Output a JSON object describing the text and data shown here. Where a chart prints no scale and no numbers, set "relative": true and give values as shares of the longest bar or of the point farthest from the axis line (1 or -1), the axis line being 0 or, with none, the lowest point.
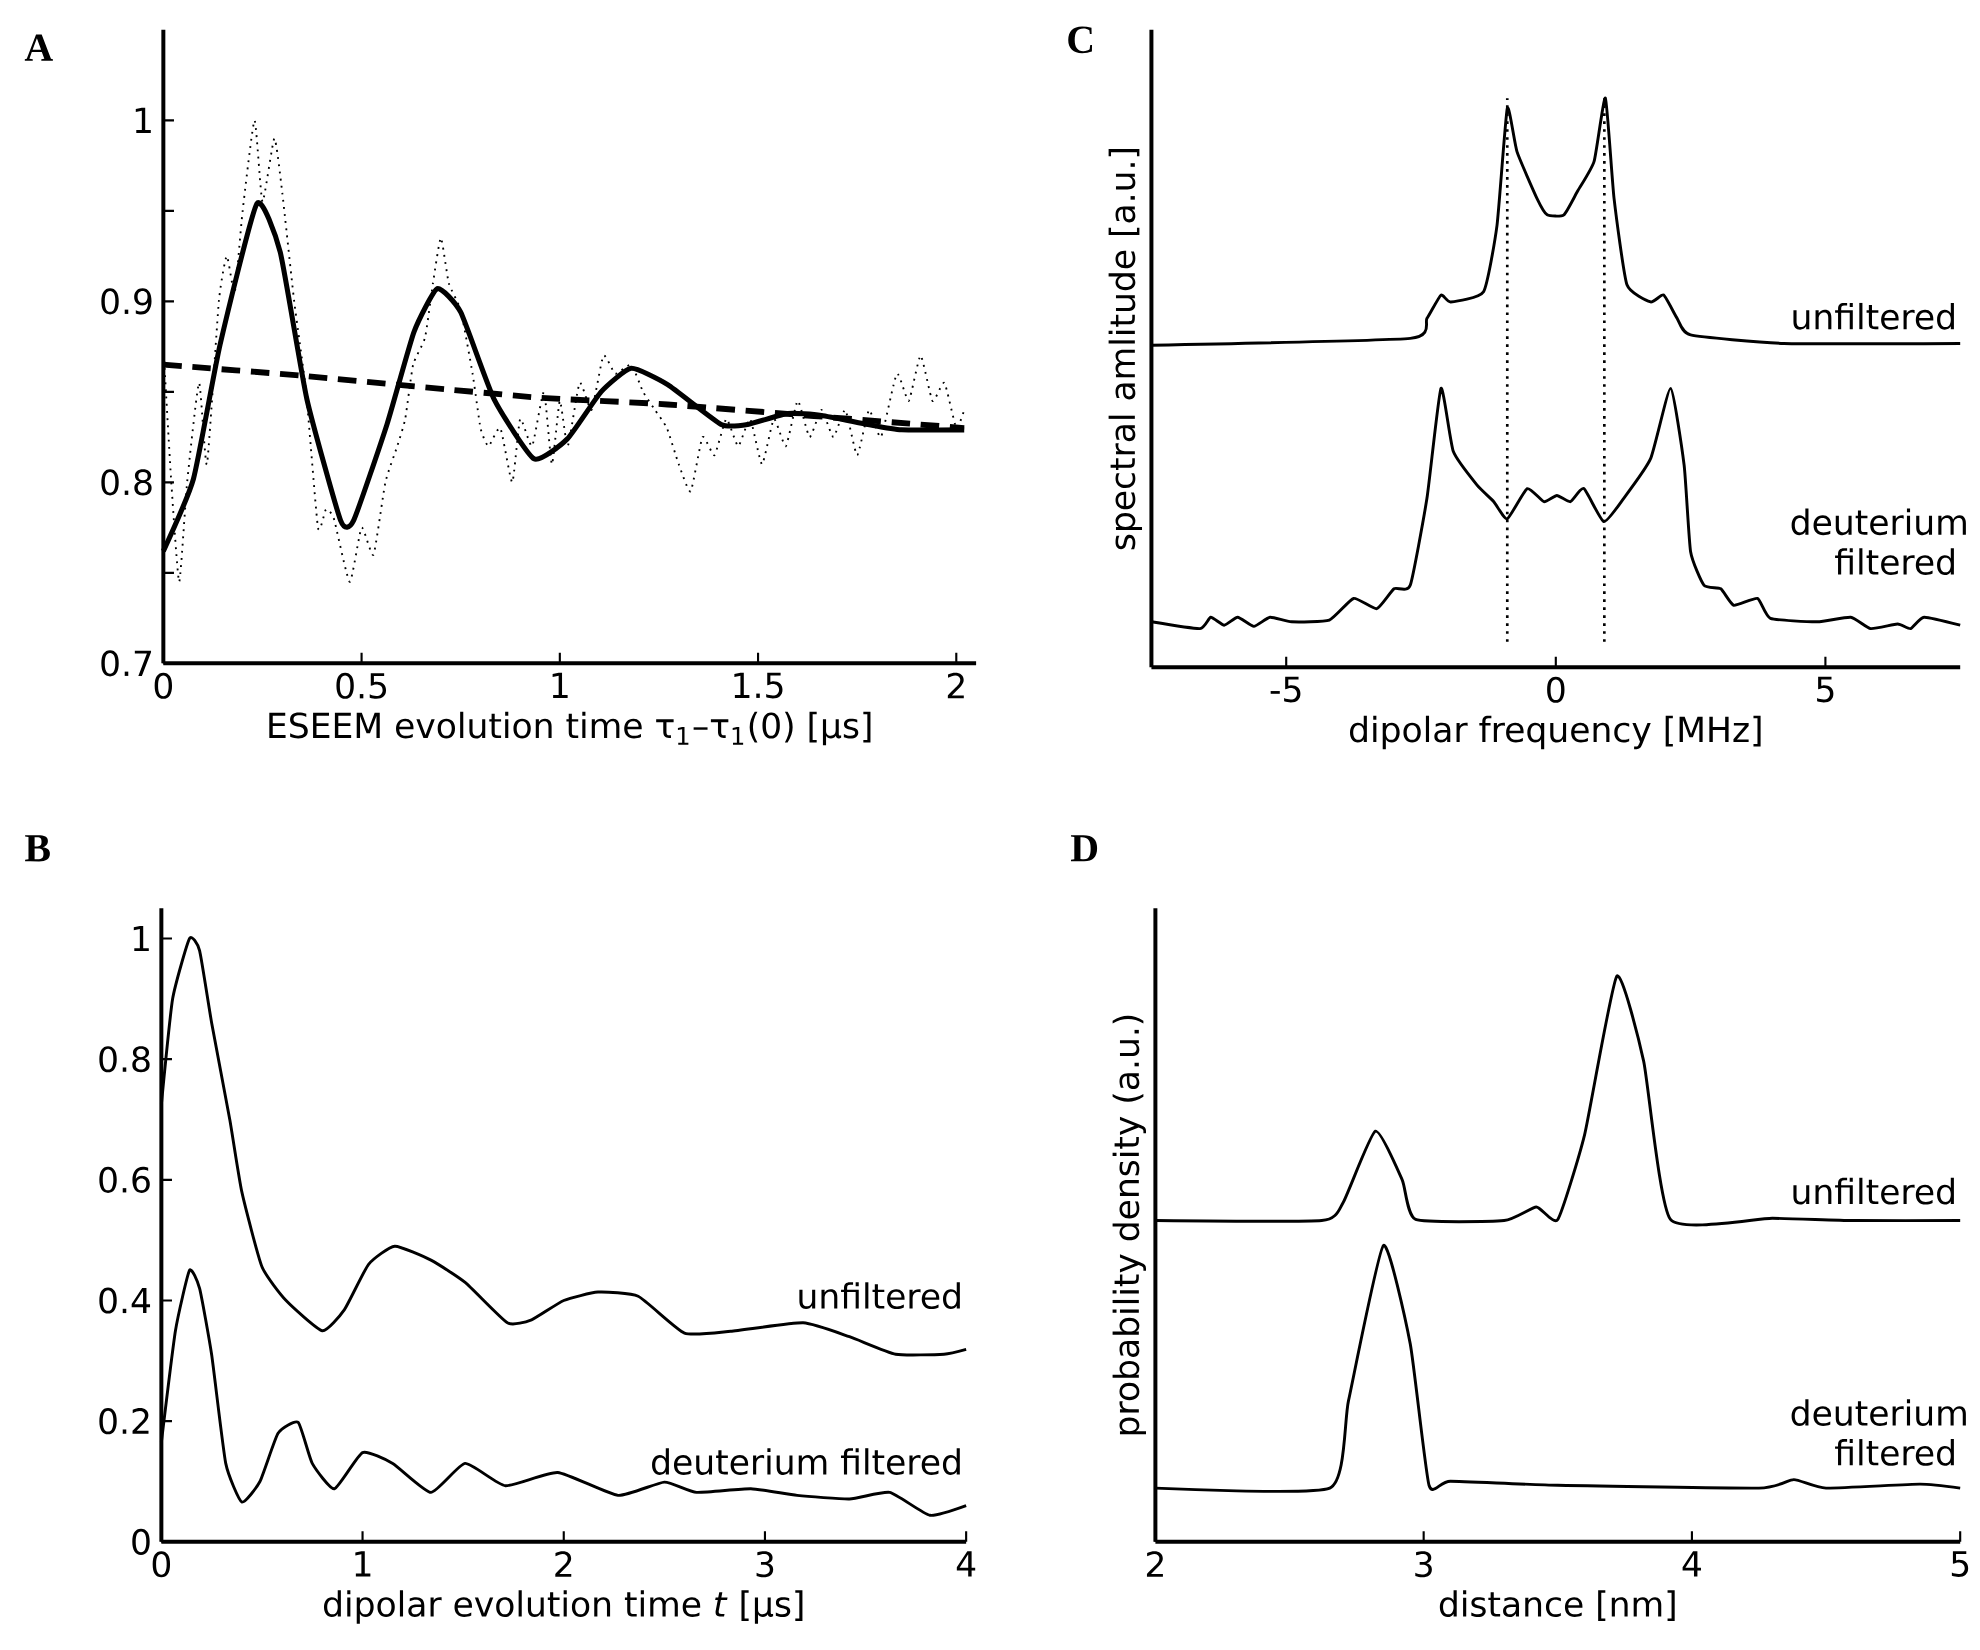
{
  "chart_data": [
    {
      "type": "line",
      "title": "A",
      "xlabel": "ESEEM evolution time τ$_{1}$–τ$_{1}$(0) [μs]",
      "xlim": [
        0,
        2.05
      ],
      "ylim": [
        0.7,
        1.05
      ],
      "xticks": [
        0,
        0.5,
        1,
        1.5,
        2
      ],
      "yticks": [
        0.7,
        {
          "value": 0.75,
          "label": null
        },
        0.8,
        {
          "value": 0.85,
          "label": null
        },
        0.9,
        {
          "value": 0.95,
          "label": null
        },
        1
      ],
      "series": [
        {
          "color": "#000000",
          "line_style": "dotted",
          "x": [
            0,
            0.02,
            0.04,
            0.06,
            0.09,
            0.11,
            0.14,
            0.16,
            0.18,
            0.2,
            0.23,
            0.25,
            0.28,
            0.3,
            0.33,
            0.36,
            0.39,
            0.41,
            0.43,
            0.47,
            0.5,
            0.53,
            0.56,
            0.59,
            0.61,
            0.63,
            0.66,
            0.68,
            0.7,
            0.72,
            0.75,
            0.78,
            0.8,
            0.82,
            0.85,
            0.88,
            0.9,
            0.93,
            0.96,
            0.98,
            1.0,
            1.02,
            1.05,
            1.08,
            1.11,
            1.14,
            1.18,
            1.21,
            1.24,
            1.27,
            1.3,
            1.33,
            1.36,
            1.39,
            1.42,
            1.45,
            1.48,
            1.51,
            1.54,
            1.57,
            1.6,
            1.63,
            1.66,
            1.69,
            1.72,
            1.75,
            1.78,
            1.81,
            1.85,
            1.88,
            1.91,
            1.94,
            1.97,
            2.0,
            2.02
          ],
          "values": [
            0.875,
            0.8,
            0.745,
            0.8,
            0.855,
            0.81,
            0.9,
            0.925,
            0.905,
            0.95,
            1.0,
            0.955,
            0.99,
            0.96,
            0.9,
            0.85,
            0.775,
            0.785,
            0.78,
            0.745,
            0.775,
            0.76,
            0.8,
            0.82,
            0.835,
            0.865,
            0.88,
            0.91,
            0.935,
            0.91,
            0.895,
            0.86,
            0.83,
            0.82,
            0.83,
            0.8,
            0.835,
            0.82,
            0.85,
            0.81,
            0.845,
            0.82,
            0.855,
            0.84,
            0.87,
            0.86,
            0.865,
            0.85,
            0.84,
            0.83,
            0.81,
            0.795,
            0.825,
            0.815,
            0.835,
            0.82,
            0.835,
            0.81,
            0.835,
            0.82,
            0.845,
            0.825,
            0.84,
            0.825,
            0.84,
            0.815,
            0.84,
            0.825,
            0.86,
            0.845,
            0.87,
            0.845,
            0.855,
            0.83,
            0.84
          ]
        },
        {
          "color": "#000000",
          "line_style": "dashed",
          "x": [
            0,
            0.345,
            0.935,
            1.272,
            2.02
          ],
          "values": [
            0.865,
            0.859,
            0.847,
            0.843,
            0.83
          ]
        },
        {
          "color": "#000000",
          "line_style": "solid",
          "x": [
            0,
            0.076,
            0.143,
            0.236,
            0.295,
            0.362,
            0.447,
            0.48,
            0.564,
            0.632,
            0.691,
            0.75,
            0.834,
            0.935,
            1.019,
            1.104,
            1.18,
            1.272,
            1.407,
            1.474,
            1.575,
            1.66,
            1.777,
            1.862,
            2.02
          ],
          "values": [
            0.762,
            0.802,
            0.876,
            0.954,
            0.927,
            0.846,
            0.779,
            0.779,
            0.832,
            0.883,
            0.907,
            0.894,
            0.846,
            0.813,
            0.824,
            0.85,
            0.863,
            0.854,
            0.832,
            0.832,
            0.838,
            0.837,
            0.832,
            0.829,
            0.829
          ]
        }
      ]
    },
    {
      "type": "line",
      "title": "C",
      "xlabel": "dipolar frequency [MHz]",
      "ylabel": "spectral amlitude [a.u.]",
      "relative": true,
      "xlim": [
        -7.5,
        7.5
      ],
      "xticks": [
        -5,
        0,
        5
      ],
      "ref_lines": [
        {
          "axis": "x",
          "value": -0.9,
          "color": "#000000",
          "line_style": "dotted"
        },
        {
          "axis": "x",
          "value": 0.9,
          "color": "#000000",
          "line_style": "dotted"
        }
      ],
      "series": [
        {
          "name": "unfiltered",
          "color": "#000000",
          "line_style": "solid",
          "x": [
            -7.5,
            -2.7,
            -2.39,
            -2.13,
            -1.95,
            -1.34,
            -1.09,
            -0.9,
            -0.72,
            -0.35,
            -0.16,
            0.15,
            0.4,
            0.71,
            0.92,
            1.08,
            1.32,
            1.76,
            2.0,
            2.25,
            2.5,
            4.23,
            7.5
          ],
          "values": [
            0.566,
            0.578,
            0.613,
            0.654,
            0.642,
            0.66,
            0.777,
            0.982,
            0.906,
            0.824,
            0.795,
            0.795,
            0.836,
            0.889,
            1.0,
            0.824,
            0.672,
            0.642,
            0.654,
            0.613,
            0.584,
            0.569,
            0.569
          ]
        },
        {
          "name": "deuterium filtered",
          "color": "#000000",
          "line_style": "solid",
          "x": [
            -7.5,
            -6.6,
            -6.4,
            -6.15,
            -5.9,
            -5.6,
            -5.3,
            -4.9,
            -4.2,
            -3.75,
            -3.32,
            -3.0,
            -2.7,
            -2.39,
            -2.13,
            -1.9,
            -1.46,
            -1.15,
            -0.9,
            -0.53,
            -0.22,
            0.02,
            0.27,
            0.52,
            0.89,
            1.26,
            1.76,
            2.13,
            2.38,
            2.5,
            2.75,
            3.06,
            3.3,
            3.74,
            3.98,
            4.85,
            5.47,
            5.84,
            6.34,
            6.58,
            6.83,
            7.5
          ],
          "values": [
            0.08,
            0.068,
            0.088,
            0.074,
            0.088,
            0.072,
            0.088,
            0.08,
            0.083,
            0.121,
            0.103,
            0.138,
            0.144,
            0.297,
            0.49,
            0.379,
            0.32,
            0.291,
            0.261,
            0.314,
            0.291,
            0.302,
            0.291,
            0.314,
            0.256,
            0.297,
            0.367,
            0.49,
            0.355,
            0.203,
            0.144,
            0.138,
            0.109,
            0.121,
            0.086,
            0.08,
            0.088,
            0.068,
            0.076,
            0.068,
            0.088,
            0.074
          ]
        }
      ]
    },
    {
      "type": "line",
      "title": "B",
      "xlabel": "dipolar evolution time *t* [μs]",
      "xlim": [
        0,
        4
      ],
      "ylim": [
        0,
        1.05
      ],
      "xticks": [
        0,
        1,
        2,
        3,
        4
      ],
      "yticks": [
        0,
        0.2,
        0.4,
        0.6,
        0.8,
        1
      ],
      "series": [
        {
          "name": "unfiltered",
          "color": "#000000",
          "line_style": "solid",
          "x": [
            0,
            0.056,
            0.14,
            0.19,
            0.25,
            0.34,
            0.4,
            0.5,
            0.62,
            0.8,
            0.91,
            1.03,
            1.16,
            1.34,
            1.51,
            1.72,
            1.84,
            2.0,
            2.17,
            2.37,
            2.6,
            2.83,
            3.19,
            3.42,
            3.65,
            3.89,
            4.0
          ],
          "values": [
            0.725,
            0.9,
            1.0,
            0.98,
            0.86,
            0.7,
            0.58,
            0.456,
            0.4,
            0.35,
            0.385,
            0.46,
            0.49,
            0.467,
            0.43,
            0.363,
            0.368,
            0.4,
            0.414,
            0.407,
            0.346,
            0.349,
            0.363,
            0.34,
            0.311,
            0.311,
            0.319
          ]
        },
        {
          "name": "deuterium filtered",
          "color": "#000000",
          "line_style": "solid",
          "x": [
            0,
            0.07,
            0.14,
            0.19,
            0.25,
            0.32,
            0.4,
            0.49,
            0.58,
            0.68,
            0.75,
            0.86,
            1.0,
            1.15,
            1.34,
            1.51,
            1.71,
            1.97,
            2.27,
            2.5,
            2.66,
            2.93,
            3.16,
            3.42,
            3.62,
            3.82,
            4.0
          ],
          "values": [
            0.165,
            0.35,
            0.45,
            0.42,
            0.31,
            0.13,
            0.066,
            0.1,
            0.18,
            0.198,
            0.13,
            0.088,
            0.148,
            0.13,
            0.082,
            0.13,
            0.093,
            0.115,
            0.077,
            0.099,
            0.082,
            0.088,
            0.077,
            0.071,
            0.082,
            0.044,
            0.06
          ]
        }
      ]
    },
    {
      "type": "line",
      "title": "D",
      "xlabel": "distance [nm]",
      "ylabel": "probability density (a.u.)",
      "relative": true,
      "xlim": [
        2,
        5
      ],
      "xticks": [
        2,
        3,
        4,
        5
      ],
      "series": [
        {
          "name": "unfiltered",
          "color": "#000000",
          "line_style": "solid",
          "x": [
            2,
            2.62,
            2.7,
            2.82,
            2.92,
            2.97,
            3.3,
            3.42,
            3.5,
            3.6,
            3.72,
            3.82,
            3.92,
            4.3,
            4.6,
            5
          ],
          "values": [
            0.568,
            0.568,
            0.6,
            0.726,
            0.64,
            0.57,
            0.568,
            0.592,
            0.57,
            0.72,
            1.0,
            0.85,
            0.57,
            0.572,
            0.568,
            0.568
          ]
        },
        {
          "name": "deuterium filtered",
          "color": "#000000",
          "line_style": "solid",
          "x": [
            2,
            2.65,
            2.72,
            2.85,
            2.95,
            3.02,
            3.1,
            3.5,
            4.25,
            4.38,
            4.5,
            4.85,
            5
          ],
          "values": [
            0.095,
            0.095,
            0.25,
            0.524,
            0.35,
            0.1,
            0.107,
            0.1,
            0.095,
            0.11,
            0.095,
            0.102,
            0.095
          ]
        }
      ]
    }
  ]
}
